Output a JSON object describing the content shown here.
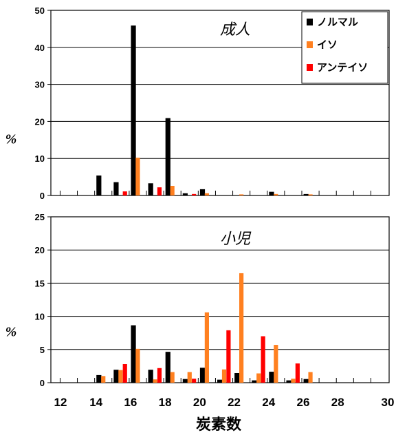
{
  "chart_data": [
    {
      "type": "bar",
      "title": "成人",
      "ylabel": "%",
      "xlabel": "",
      "ylim": [
        0,
        50
      ],
      "yticks": [
        0,
        10,
        20,
        30,
        40,
        50
      ],
      "categories": [
        "12",
        "13",
        "14",
        "15",
        "16",
        "17",
        "18",
        "19",
        "20",
        "21",
        "22",
        "23",
        "24",
        "25",
        "26",
        "27",
        "28",
        "29",
        "30"
      ],
      "series": [
        {
          "name": "ノルマル",
          "color": "#000000",
          "values": [
            0,
            0,
            5.3,
            3.5,
            45.8,
            3.2,
            20.8,
            0.5,
            1.6,
            0,
            0,
            0,
            0.9,
            0,
            0.3,
            0,
            0,
            0,
            0
          ]
        },
        {
          "name": "イソ",
          "color": "#ff8020",
          "values": [
            0,
            0,
            0,
            0,
            10.2,
            0,
            2.6,
            0,
            0.6,
            0,
            0.3,
            0,
            0.4,
            0,
            0.3,
            0,
            0,
            0,
            0
          ]
        },
        {
          "name": "アンテイソ",
          "color": "#ff0000",
          "values": [
            0,
            0,
            0,
            1.1,
            0,
            2.2,
            0,
            0.4,
            0,
            0,
            0,
            0,
            0,
            0,
            0,
            0,
            0,
            0,
            0
          ]
        }
      ],
      "grid": true,
      "legend": "top-right"
    },
    {
      "type": "bar",
      "title": "小児",
      "ylabel": "%",
      "xlabel": "炭素数",
      "ylim": [
        0,
        25
      ],
      "yticks": [
        0,
        5,
        10,
        15,
        20,
        25
      ],
      "categories": [
        "12",
        "13",
        "14",
        "15",
        "16",
        "17",
        "18",
        "19",
        "20",
        "21",
        "22",
        "23",
        "24",
        "25",
        "26",
        "27",
        "28",
        "29",
        "30"
      ],
      "xticks": [
        "12",
        "14",
        "16",
        "18",
        "20",
        "22",
        "24",
        "26",
        "28",
        "30"
      ],
      "series": [
        {
          "name": "ノルマル",
          "color": "#000000",
          "values": [
            0,
            0,
            1.1,
            1.9,
            8.6,
            1.9,
            4.6,
            0.5,
            2.2,
            0.4,
            1.4,
            0.3,
            1.6,
            0.3,
            0.5,
            0,
            0,
            0,
            0
          ]
        },
        {
          "name": "イソ",
          "color": "#ff8020",
          "values": [
            0,
            0,
            1.0,
            1.9,
            5.1,
            0.5,
            1.6,
            1.6,
            10.6,
            2.0,
            16.5,
            1.4,
            5.7,
            0.6,
            1.6,
            0,
            0,
            0,
            0
          ]
        },
        {
          "name": "アンテイソ",
          "color": "#ff0000",
          "values": [
            0,
            0,
            0,
            2.8,
            0,
            2.2,
            0,
            0.6,
            0,
            7.9,
            0,
            7.0,
            0,
            2.9,
            0,
            0,
            0,
            0,
            0
          ]
        }
      ],
      "grid": true
    }
  ]
}
